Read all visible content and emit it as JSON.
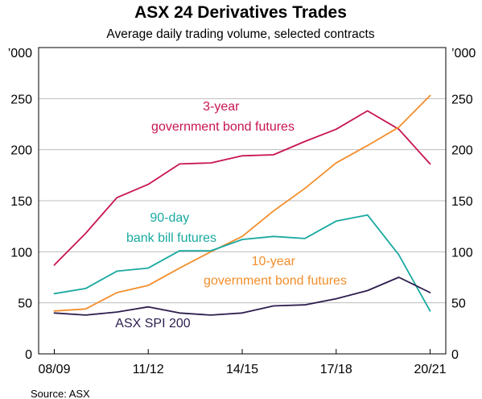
{
  "colors": {
    "three_year": "#c8154f",
    "ten_year": "#f28e2b",
    "ninety_day": "#19a9a0",
    "spi": "#2e1e4f",
    "grid": "#bdbdbd"
  },
  "chart_data": {
    "type": "line",
    "title": "ASX 24 Derivatives Trades",
    "subtitle": "Average daily trading volume, selected contracts",
    "y_unit": "’000",
    "ylim": [
      0,
      300
    ],
    "yticks": [
      0,
      50,
      100,
      150,
      200,
      250
    ],
    "xlim": [
      -0.5,
      12.5
    ],
    "x_ticks": [
      {
        "label": "08/09",
        "pos": 0
      },
      {
        "label": "11/12",
        "pos": 3
      },
      {
        "label": "14/15",
        "pos": 6
      },
      {
        "label": "17/18",
        "pos": 9
      },
      {
        "label": "20/21",
        "pos": 12
      }
    ],
    "grid": true,
    "series": [
      {
        "name": "3-year government bond futures",
        "label_lines": [
          "3-year",
          "government bond futures"
        ],
        "color_key": "three_year",
        "x": [
          0,
          1,
          2,
          3,
          4,
          5,
          6,
          7,
          8,
          9,
          10,
          11,
          12
        ],
        "values": [
          87,
          118,
          153,
          166,
          186,
          187,
          194,
          195,
          208,
          220,
          238,
          220,
          186
        ]
      },
      {
        "name": "10-year government bond futures",
        "label_lines": [
          "10-year",
          "government bond futures"
        ],
        "color_key": "ten_year",
        "x": [
          0,
          1,
          2,
          3,
          4,
          5,
          6,
          7,
          8,
          9,
          10,
          11,
          12
        ],
        "values": [
          42,
          44,
          60,
          67,
          84,
          100,
          115,
          140,
          162,
          187,
          204,
          222,
          253
        ]
      },
      {
        "name": "90-day bank bill futures",
        "label_lines": [
          "90-day",
          "bank bill futures"
        ],
        "color_key": "ninety_day",
        "x": [
          0,
          1,
          2,
          3,
          4,
          5,
          6,
          7,
          8,
          9,
          10,
          11,
          12
        ],
        "values": [
          59,
          64,
          81,
          84,
          101,
          101,
          112,
          115,
          113,
          130,
          136,
          97,
          42
        ]
      },
      {
        "name": "ASX SPI 200",
        "label_lines": [
          "ASX SPI 200"
        ],
        "color_key": "spi",
        "x": [
          0,
          1,
          2,
          3,
          4,
          5,
          6,
          7,
          8,
          9,
          10,
          11,
          12
        ],
        "values": [
          40,
          38,
          41,
          46,
          40,
          38,
          40,
          47,
          48,
          54,
          62,
          75,
          60
        ]
      }
    ]
  },
  "source": "Source:   ASX"
}
